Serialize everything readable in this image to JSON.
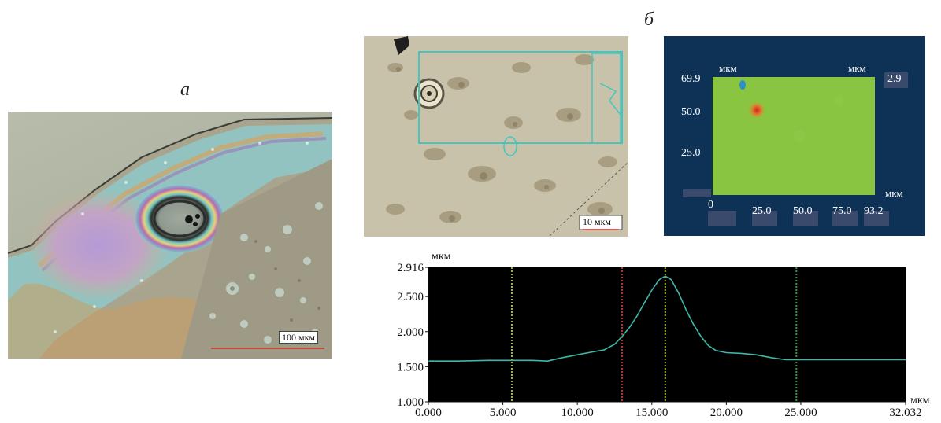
{
  "labels": {
    "panel_a": "а",
    "panel_b": "б"
  },
  "panel_a": {
    "scale_bar": "100 мкм"
  },
  "panel_b_micrograph": {
    "scale_bar": "10 мкм"
  },
  "map": {
    "x_unit": "мкм",
    "y_unit": "мкм",
    "z_unit": "мкм",
    "z_max": "2.9",
    "y_ticks": [
      "69.9",
      "50.0",
      "25.0"
    ],
    "x_ticks": [
      "0",
      "25.0",
      "50.0",
      "75.0",
      "93.2"
    ],
    "colors": {
      "background": "#0d3256",
      "surface": "#7ec23e",
      "peak": "#d2202a"
    }
  },
  "chart_data": {
    "type": "line",
    "title": "",
    "xlabel": "мкм",
    "ylabel": "мкм",
    "xlim": [
      0.0,
      32.032
    ],
    "ylim": [
      1.0,
      2.916
    ],
    "x_ticks": [
      "0.000",
      "5.000",
      "10.000",
      "15.000",
      "20.000",
      "25.000",
      "32.032"
    ],
    "x_tick_values": [
      0,
      5,
      10,
      15,
      20,
      25,
      32.032
    ],
    "y_ticks": [
      "1.000",
      "1.500",
      "2.000",
      "2.500",
      "2.916"
    ],
    "y_tick_values": [
      1.0,
      1.5,
      2.0,
      2.5,
      2.916
    ],
    "background": "#000000",
    "line_color": "#3fb7a8",
    "markers": [
      {
        "x": 5.6,
        "color": "#a8b53a"
      },
      {
        "x": 13.0,
        "color": "#c22f2f"
      },
      {
        "x": 15.9,
        "color": "#a8b53a"
      },
      {
        "x": 24.7,
        "color": "#2e9b3a"
      }
    ],
    "series": [
      {
        "x": [
          0.0,
          2.0,
          4.0,
          5.6,
          7.0,
          8.0,
          9.0,
          10.0,
          11.0,
          11.8,
          12.5,
          13.0,
          13.5,
          14.0,
          14.5,
          15.0,
          15.5,
          15.9,
          16.3,
          16.8,
          17.3,
          17.8,
          18.3,
          18.8,
          19.3,
          20.0,
          21.0,
          22.0,
          23.0,
          24.0,
          25.0,
          27.0,
          30.0,
          32.032
        ],
        "values": [
          1.58,
          1.58,
          1.59,
          1.59,
          1.59,
          1.58,
          1.63,
          1.67,
          1.71,
          1.74,
          1.82,
          1.93,
          2.06,
          2.22,
          2.41,
          2.59,
          2.74,
          2.79,
          2.74,
          2.55,
          2.31,
          2.1,
          1.93,
          1.8,
          1.73,
          1.7,
          1.69,
          1.67,
          1.63,
          1.6,
          1.6,
          1.6,
          1.6,
          1.6
        ]
      }
    ]
  }
}
